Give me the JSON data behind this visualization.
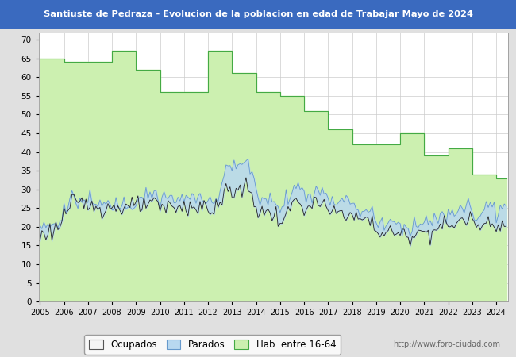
{
  "title": "Santiuste de Pedraza - Evolucion de la poblacion en edad de Trabajar Mayo de 2024",
  "title_bg": "#3a6abf",
  "title_color": "#ffffff",
  "ylim": [
    0,
    72
  ],
  "yticks": [
    0,
    5,
    10,
    15,
    20,
    25,
    30,
    35,
    40,
    45,
    50,
    55,
    60,
    65,
    70
  ],
  "hab_steps_x": [
    2005.0,
    2005.08,
    2006.0,
    2006.08,
    2007.0,
    2007.08,
    2007.5,
    2008.0,
    2008.08,
    2009.0,
    2009.08,
    2009.5,
    2010.0,
    2010.08,
    2010.5,
    2011.0,
    2011.08,
    2012.0,
    2012.08,
    2012.5,
    2013.0,
    2013.08,
    2013.5,
    2014.0,
    2014.08,
    2014.5,
    2015.0,
    2015.08,
    2015.5,
    2016.0,
    2016.08,
    2016.5,
    2017.0,
    2017.08,
    2017.5,
    2018.0,
    2018.08,
    2018.5,
    2019.0,
    2019.08,
    2019.5,
    2019.75,
    2020.0,
    2020.08,
    2020.5,
    2021.0,
    2021.08,
    2021.5,
    2022.0,
    2022.08,
    2022.5,
    2023.0,
    2023.08,
    2023.5,
    2024.0,
    2024.42
  ],
  "hab_steps_y": [
    65,
    65,
    64,
    64,
    64,
    64,
    64,
    67,
    67,
    62,
    62,
    62,
    56,
    56,
    56,
    56,
    56,
    67,
    67,
    67,
    61,
    61,
    61,
    56,
    56,
    56,
    55,
    55,
    55,
    51,
    51,
    51,
    46,
    46,
    46,
    42,
    42,
    42,
    42,
    42,
    42,
    42,
    45,
    45,
    45,
    39,
    39,
    39,
    41,
    41,
    41,
    34,
    34,
    34,
    33,
    33
  ],
  "watermark": "http://www.foro-ciudad.com",
  "bg_color": "#e8e8e8",
  "plot_bg_color": "#ffffff",
  "grid_color": "#cccccc"
}
